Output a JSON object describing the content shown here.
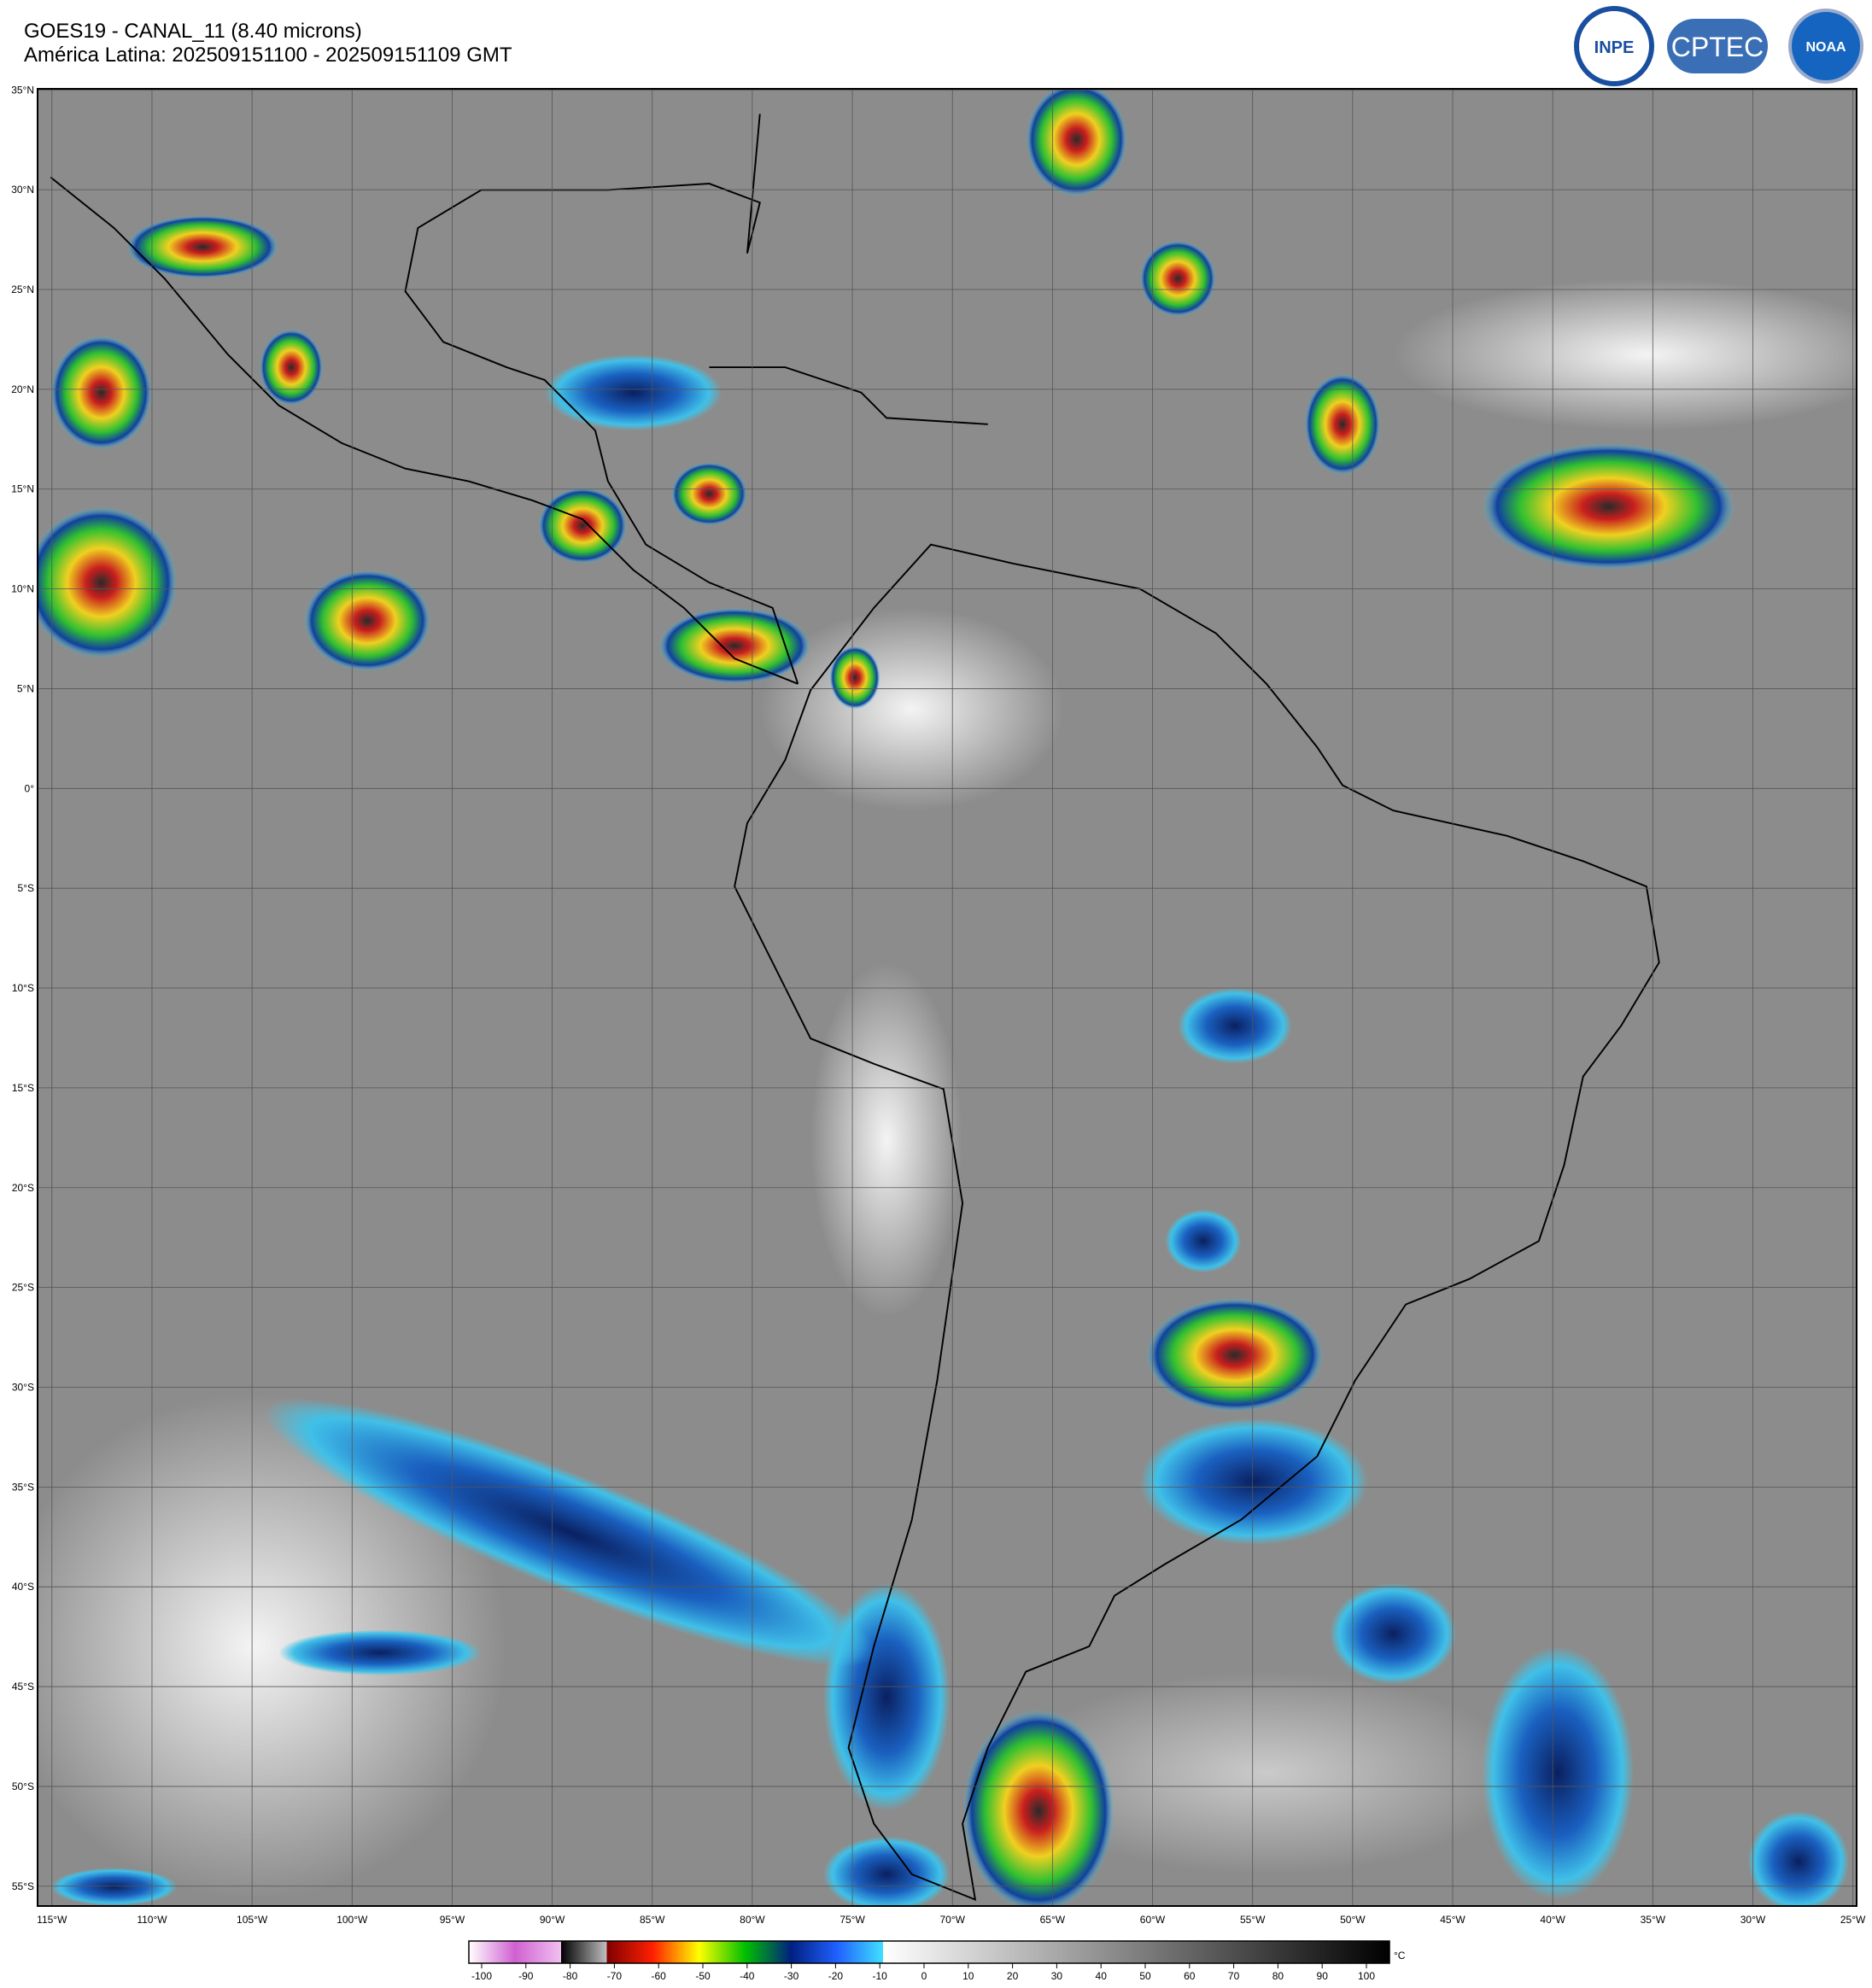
{
  "header": {
    "title": "GOES19 - CANAL_11 (8.40 microns)",
    "subtitle": "América Latina: 202509151100 - 202509151109 GMT"
  },
  "logos": [
    "INPE",
    "CPTEC",
    "NOAA"
  ],
  "lat_labels": [
    "35°N",
    "30°N",
    "25°N",
    "20°N",
    "15°N",
    "10°N",
    "5°N",
    "0°",
    "5°S",
    "10°S",
    "15°S",
    "20°S",
    "25°S",
    "30°S",
    "35°S",
    "40°S",
    "45°S",
    "50°S",
    "55°S"
  ],
  "lon_labels": [
    "115°W",
    "110°W",
    "105°W",
    "100°W",
    "95°W",
    "90°W",
    "85°W",
    "80°W",
    "75°W",
    "70°W",
    "65°W",
    "60°W",
    "55°W",
    "50°W",
    "45°W",
    "40°W",
    "35°W",
    "30°W",
    "25°W"
  ],
  "colorbar": {
    "unit": "°C",
    "ticks": [
      -100,
      -90,
      -80,
      -70,
      -60,
      -50,
      -40,
      -30,
      -20,
      -10,
      0,
      10,
      20,
      30,
      40,
      50,
      60,
      70,
      80,
      90,
      100
    ]
  }
}
